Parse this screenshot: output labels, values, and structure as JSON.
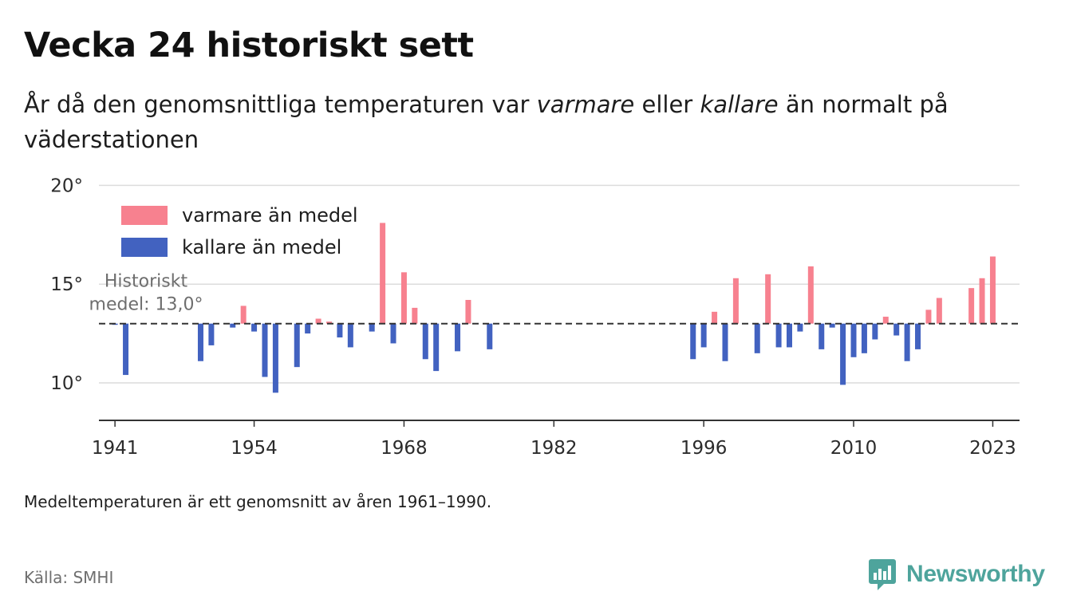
{
  "title": "Vecka 24 historiskt sett",
  "subtitle": {
    "part1": "År då den genomsnittliga temperaturen var ",
    "warm_word": "varmare",
    "part2": " eller ",
    "cold_word": "kallare",
    "part3": " än normalt på väderstationen"
  },
  "note": "Medeltemperaturen är ett genomsnitt av åren 1961–1990.",
  "source": "Källa: SMHI",
  "brand": "Newsworthy",
  "colors": {
    "warm": "#f7818f",
    "cold": "#4262c0",
    "mean_line": "#333333",
    "grid": "#dcdcdc",
    "brand": "#4ea49c"
  },
  "chart_data": {
    "type": "bar",
    "baseline": 13.0,
    "baseline_label": [
      "Historiskt",
      "medel: 13,0°"
    ],
    "ylim": [
      8.1,
      20.3
    ],
    "yticks": [
      10,
      15,
      20
    ],
    "ytick_labels": [
      "10°",
      "15°",
      "20°"
    ],
    "xlim": [
      1939.5,
      2025.5
    ],
    "xticks": [
      1941,
      1954,
      1968,
      1982,
      1996,
      2010,
      2023
    ],
    "xtick_labels": [
      "1941",
      "1954",
      "1968",
      "1982",
      "1996",
      "2010",
      "2023"
    ],
    "legend": {
      "placement": "top-left",
      "warm_label": "varmare än medel",
      "cold_label": "kallare än medel"
    },
    "series": [
      {
        "x": 1941,
        "y": 12.95
      },
      {
        "x": 1942,
        "y": 10.4
      },
      {
        "x": 1949,
        "y": 11.1
      },
      {
        "x": 1950,
        "y": 11.9
      },
      {
        "x": 1952,
        "y": 12.8
      },
      {
        "x": 1953,
        "y": 13.9
      },
      {
        "x": 1954,
        "y": 12.6
      },
      {
        "x": 1955,
        "y": 10.3
      },
      {
        "x": 1956,
        "y": 9.5
      },
      {
        "x": 1958,
        "y": 10.8
      },
      {
        "x": 1959,
        "y": 12.5
      },
      {
        "x": 1960,
        "y": 13.25
      },
      {
        "x": 1961,
        "y": 13.1
      },
      {
        "x": 1962,
        "y": 12.3
      },
      {
        "x": 1963,
        "y": 11.8
      },
      {
        "x": 1965,
        "y": 12.6
      },
      {
        "x": 1966,
        "y": 18.1
      },
      {
        "x": 1967,
        "y": 12.0
      },
      {
        "x": 1968,
        "y": 15.6
      },
      {
        "x": 1969,
        "y": 13.8
      },
      {
        "x": 1970,
        "y": 11.2
      },
      {
        "x": 1971,
        "y": 10.6
      },
      {
        "x": 1973,
        "y": 11.6
      },
      {
        "x": 1974,
        "y": 14.2
      },
      {
        "x": 1976,
        "y": 11.7
      },
      {
        "x": 1995,
        "y": 11.2
      },
      {
        "x": 1996,
        "y": 11.8
      },
      {
        "x": 1997,
        "y": 13.6
      },
      {
        "x": 1998,
        "y": 11.1
      },
      {
        "x": 1999,
        "y": 15.3
      },
      {
        "x": 2001,
        "y": 11.5
      },
      {
        "x": 2002,
        "y": 15.5
      },
      {
        "x": 2003,
        "y": 11.8
      },
      {
        "x": 2004,
        "y": 11.8
      },
      {
        "x": 2005,
        "y": 12.6
      },
      {
        "x": 2006,
        "y": 15.9
      },
      {
        "x": 2007,
        "y": 11.7
      },
      {
        "x": 2008,
        "y": 12.8
      },
      {
        "x": 2009,
        "y": 9.9
      },
      {
        "x": 2010,
        "y": 11.3
      },
      {
        "x": 2011,
        "y": 11.5
      },
      {
        "x": 2012,
        "y": 12.2
      },
      {
        "x": 2013,
        "y": 13.35
      },
      {
        "x": 2014,
        "y": 12.4
      },
      {
        "x": 2015,
        "y": 11.1
      },
      {
        "x": 2016,
        "y": 11.7
      },
      {
        "x": 2017,
        "y": 13.7
      },
      {
        "x": 2018,
        "y": 14.3
      },
      {
        "x": 2021,
        "y": 14.8
      },
      {
        "x": 2022,
        "y": 15.3
      },
      {
        "x": 2023,
        "y": 16.4
      }
    ]
  }
}
